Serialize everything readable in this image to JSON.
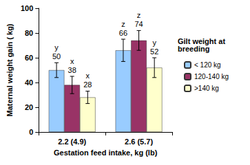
{
  "chart_data": {
    "type": "bar",
    "categories": [
      "2.2 (4.9)",
      "2.6 (5.7)"
    ],
    "xlabel": "Gestation feed intake, kg (lb)",
    "ylabel": "Maternal weight gain ( kg)",
    "legend_title": "Gilt weight at breeding",
    "series": [
      {
        "name": "< 120 kg",
        "color": "#99ccff",
        "values": [
          50,
          66
        ],
        "errors": [
          6,
          9
        ],
        "letters": [
          "y",
          "z"
        ]
      },
      {
        "name": "120-140 kg",
        "color": "#993366",
        "values": [
          38,
          74
        ],
        "errors": [
          7,
          8
        ],
        "letters": [
          "x",
          "z"
        ]
      },
      {
        "name": ">140 kg",
        "color": "#ffffcc",
        "values": [
          28,
          52
        ],
        "errors": [
          5,
          8
        ],
        "letters": [
          "x",
          "y"
        ]
      }
    ],
    "ylim": [
      0,
      100
    ],
    "yticks": [
      0,
      20,
      40,
      60,
      80,
      100
    ],
    "grid": false,
    "legend": "right",
    "data_labels": true
  }
}
